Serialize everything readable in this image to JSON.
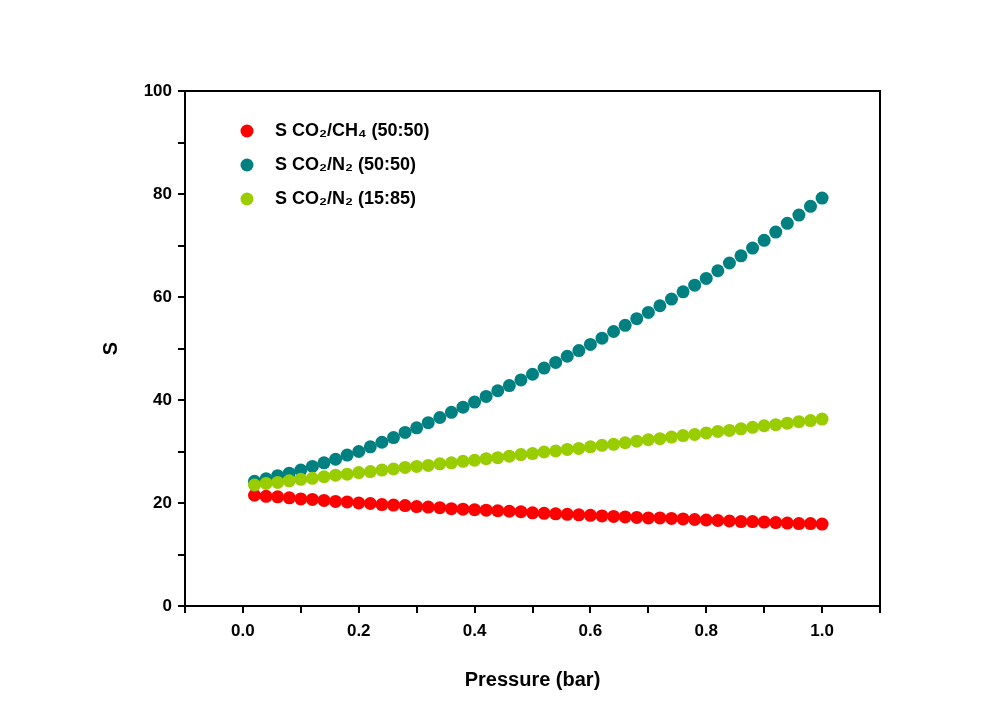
{
  "chart_data": {
    "type": "scatter",
    "xlabel": "Pressure (bar)",
    "ylabel": "S",
    "x": [
      0.02,
      0.04,
      0.06,
      0.08,
      0.1,
      0.12,
      0.14,
      0.16,
      0.18,
      0.2,
      0.22,
      0.24,
      0.26,
      0.28,
      0.3,
      0.32,
      0.34,
      0.36,
      0.38,
      0.4,
      0.42,
      0.44,
      0.46,
      0.48,
      0.5,
      0.52,
      0.54,
      0.56,
      0.58,
      0.6,
      0.62,
      0.64,
      0.66,
      0.68,
      0.7,
      0.72,
      0.74,
      0.76,
      0.78,
      0.8,
      0.82,
      0.84,
      0.86,
      0.88,
      0.9,
      0.92,
      0.94,
      0.96,
      0.98,
      1.0
    ],
    "series": [
      {
        "name": "S CO₂/CH₄ (50:50)",
        "color": "#ff0000",
        "values": [
          21.5,
          21.3,
          21.2,
          21.0,
          20.8,
          20.7,
          20.5,
          20.3,
          20.2,
          20.0,
          19.9,
          19.7,
          19.6,
          19.5,
          19.3,
          19.2,
          19.1,
          18.9,
          18.8,
          18.7,
          18.6,
          18.5,
          18.4,
          18.3,
          18.1,
          18.0,
          17.9,
          17.8,
          17.7,
          17.6,
          17.5,
          17.4,
          17.3,
          17.2,
          17.1,
          17.1,
          17.0,
          16.9,
          16.8,
          16.7,
          16.6,
          16.5,
          16.4,
          16.4,
          16.3,
          16.2,
          16.1,
          16.0,
          16.0,
          15.9
        ]
      },
      {
        "name": "S CO₂/N₂ (50:50)",
        "color": "#008080",
        "values": [
          24.2,
          24.7,
          25.3,
          25.8,
          26.4,
          27.1,
          27.8,
          28.5,
          29.3,
          30.0,
          30.9,
          31.8,
          32.7,
          33.7,
          34.6,
          35.6,
          36.6,
          37.6,
          38.6,
          39.6,
          40.7,
          41.8,
          42.8,
          43.9,
          45.0,
          46.2,
          47.3,
          48.5,
          49.6,
          50.8,
          52.0,
          53.3,
          54.5,
          55.8,
          57.0,
          58.3,
          59.6,
          61.0,
          62.3,
          63.6,
          65.1,
          66.6,
          68.0,
          69.5,
          71.0,
          72.6,
          74.3,
          75.9,
          77.6,
          79.2
        ]
      },
      {
        "name": "S CO₂/N₂ (15:85)",
        "color": "#9acd00",
        "values": [
          23.5,
          23.8,
          24.0,
          24.3,
          24.6,
          24.8,
          25.1,
          25.4,
          25.6,
          25.9,
          26.1,
          26.4,
          26.6,
          26.9,
          27.1,
          27.3,
          27.6,
          27.8,
          28.1,
          28.3,
          28.6,
          28.8,
          29.1,
          29.4,
          29.6,
          29.9,
          30.1,
          30.4,
          30.6,
          30.9,
          31.2,
          31.4,
          31.7,
          32.0,
          32.3,
          32.5,
          32.8,
          33.1,
          33.3,
          33.6,
          33.9,
          34.1,
          34.4,
          34.7,
          35.0,
          35.2,
          35.5,
          35.8,
          36.0,
          36.3
        ]
      }
    ],
    "xlim": [
      -0.1,
      1.1
    ],
    "xticks": [
      {
        "value": -0.1,
        "label": null
      },
      {
        "value": 0,
        "label": "0.0"
      },
      {
        "value": 0.1,
        "label": null
      },
      {
        "value": 0.2,
        "label": "0.2"
      },
      {
        "value": 0.3,
        "label": null
      },
      {
        "value": 0.4,
        "label": "0.4"
      },
      {
        "value": 0.5,
        "label": null
      },
      {
        "value": 0.6,
        "label": "0.6"
      },
      {
        "value": 0.7,
        "label": null
      },
      {
        "value": 0.8,
        "label": "0.8"
      },
      {
        "value": 0.9,
        "label": null
      },
      {
        "value": 1.0,
        "label": "1.0"
      },
      {
        "value": 1.1,
        "label": null
      }
    ],
    "ylim": [
      0,
      100
    ],
    "yticks": [
      0,
      {
        "value": 10,
        "label": null
      },
      20,
      {
        "value": 30,
        "label": null
      },
      40,
      {
        "value": 50,
        "label": null
      },
      60,
      {
        "value": 70,
        "label": null
      },
      80,
      {
        "value": 90,
        "label": null
      },
      100
    ],
    "grid": false,
    "legend": "top left",
    "marker": "circle"
  }
}
